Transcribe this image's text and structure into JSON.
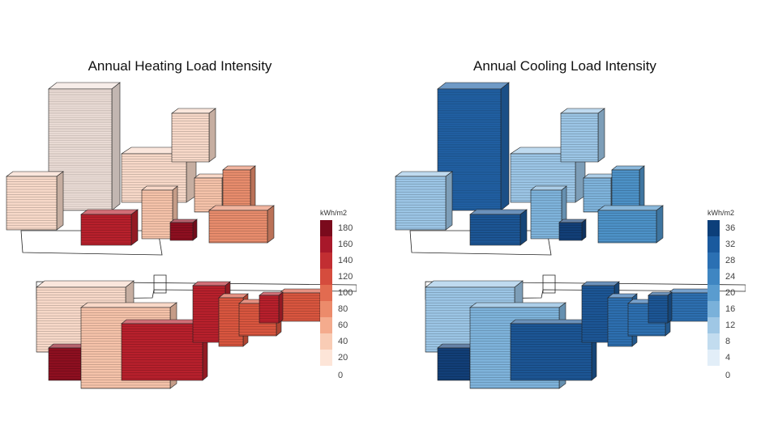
{
  "panels": [
    {
      "title": "Annual Heating Load Intensity",
      "legend": {
        "unit": "kWh/m2",
        "ticks": [
          "180",
          "160",
          "140",
          "120",
          "100",
          "80",
          "60",
          "40",
          "20",
          "0"
        ],
        "colors": [
          "#7a0a1c",
          "#a8182a",
          "#c22e32",
          "#d54c3d",
          "#e26b50",
          "#ec8b6b",
          "#f4ab8d",
          "#f9ccb5",
          "#fde5d8"
        ]
      },
      "palette": {
        "tower": "#f3e4dd",
        "pale": "#f8d9c9",
        "light": "#f6c3aa",
        "mid": "#e98d6d",
        "strong": "#d9563f",
        "deep": "#b8202c",
        "darkest": "#8e0f20"
      }
    },
    {
      "title": "Annual Cooling Load Intensity",
      "legend": {
        "unit": "kWh/m2",
        "ticks": [
          "36",
          "32",
          "28",
          "24",
          "20",
          "16",
          "12",
          "8",
          "4",
          "0"
        ],
        "colors": [
          "#0c3f7a",
          "#1a5a9e",
          "#2b70b3",
          "#3f86c2",
          "#5a9ccf",
          "#7ab1da",
          "#9fc7e5",
          "#c2dcef",
          "#e2eef8"
        ]
      },
      "palette": {
        "tower": "#2263a8",
        "pale": "#9cc6e6",
        "light": "#7fb4dc",
        "mid": "#4d92c8",
        "strong": "#2d6fb0",
        "deep": "#1c5695",
        "darkest": "#123f78"
      }
    }
  ]
}
